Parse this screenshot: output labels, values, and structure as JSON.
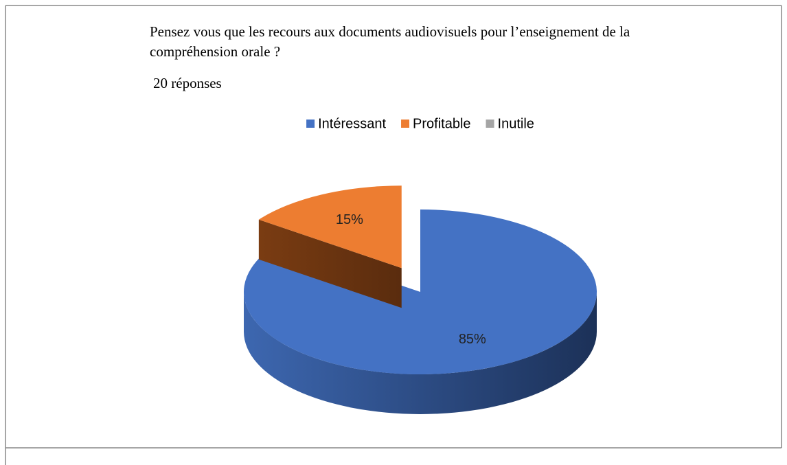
{
  "chart_data": {
    "type": "pie3d",
    "title": "Pensez vous que les recours aux documents audiovisuels pour l’enseignement de la compréhension orale ?",
    "subtitle": "20 réponses",
    "categories": [
      "Intéressant",
      "Profitable",
      "Inutile"
    ],
    "values": [
      85,
      15,
      0
    ],
    "value_labels": [
      "85%",
      "15%",
      null
    ],
    "colors": [
      "#4472c4",
      "#ed7d31",
      "#a5a5a5"
    ],
    "exploded": [
      false,
      true,
      false
    ],
    "legend": "top"
  }
}
